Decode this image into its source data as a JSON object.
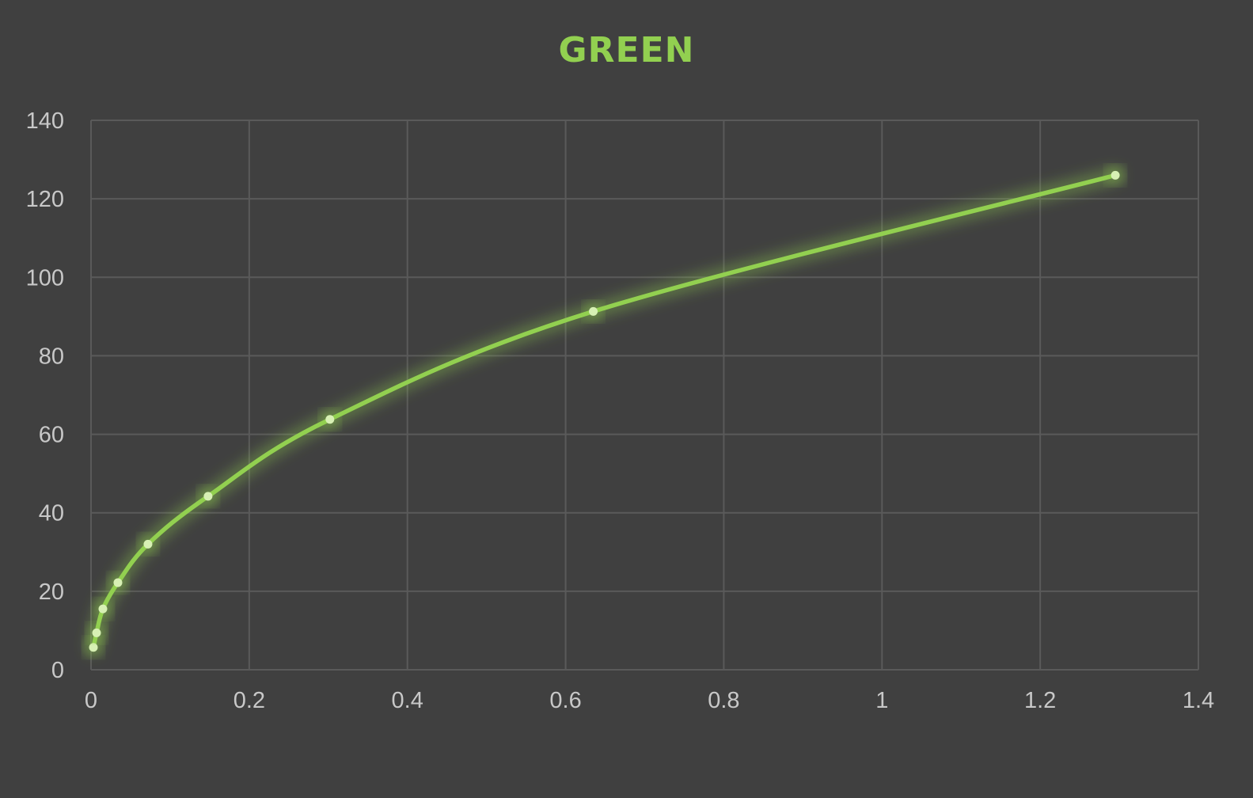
{
  "chart_data": {
    "type": "scatter",
    "title": "GREEN",
    "xlabel": "",
    "ylabel": "",
    "xlim": [
      0,
      1.4
    ],
    "ylim": [
      0,
      140
    ],
    "xticks": [
      "0",
      "0.2",
      "0.4",
      "0.6",
      "0.8",
      "1",
      "1.2",
      "1.4"
    ],
    "yticks": [
      "0",
      "20",
      "40",
      "60",
      "80",
      "100",
      "120",
      "140"
    ],
    "grid": true,
    "smooth": true,
    "series": [
      {
        "color": "#92d050",
        "marker_color": "#d7f0b4",
        "points": [
          {
            "x": 0.003,
            "y": 5.7
          },
          {
            "x": 0.007,
            "y": 9.4
          },
          {
            "x": 0.015,
            "y": 15.5
          },
          {
            "x": 0.034,
            "y": 22.2
          },
          {
            "x": 0.072,
            "y": 32.0
          },
          {
            "x": 0.148,
            "y": 44.2
          },
          {
            "x": 0.302,
            "y": 63.8
          },
          {
            "x": 0.635,
            "y": 91.3
          },
          {
            "x": 1.295,
            "y": 126.0
          }
        ]
      }
    ]
  },
  "colors": {
    "background": "#404040",
    "grid": "#5a5a5a",
    "tick_text": "#c8c8c8",
    "accent": "#92d050"
  }
}
